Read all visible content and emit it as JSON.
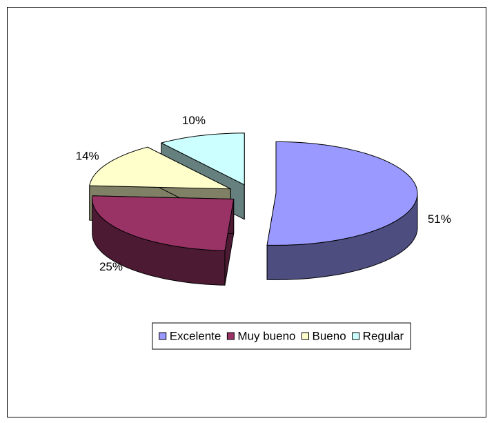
{
  "chart_data": {
    "type": "pie3d",
    "categories": [
      "Excelente",
      "Muy bueno",
      "Bueno",
      "Regular"
    ],
    "values": [
      51,
      25,
      14,
      10
    ],
    "value_labels": [
      "51%",
      "25%",
      "14%",
      "10%"
    ],
    "colors": [
      "#9999ff",
      "#993366",
      "#ffffcc",
      "#ccffff"
    ],
    "legend": "bottom"
  }
}
